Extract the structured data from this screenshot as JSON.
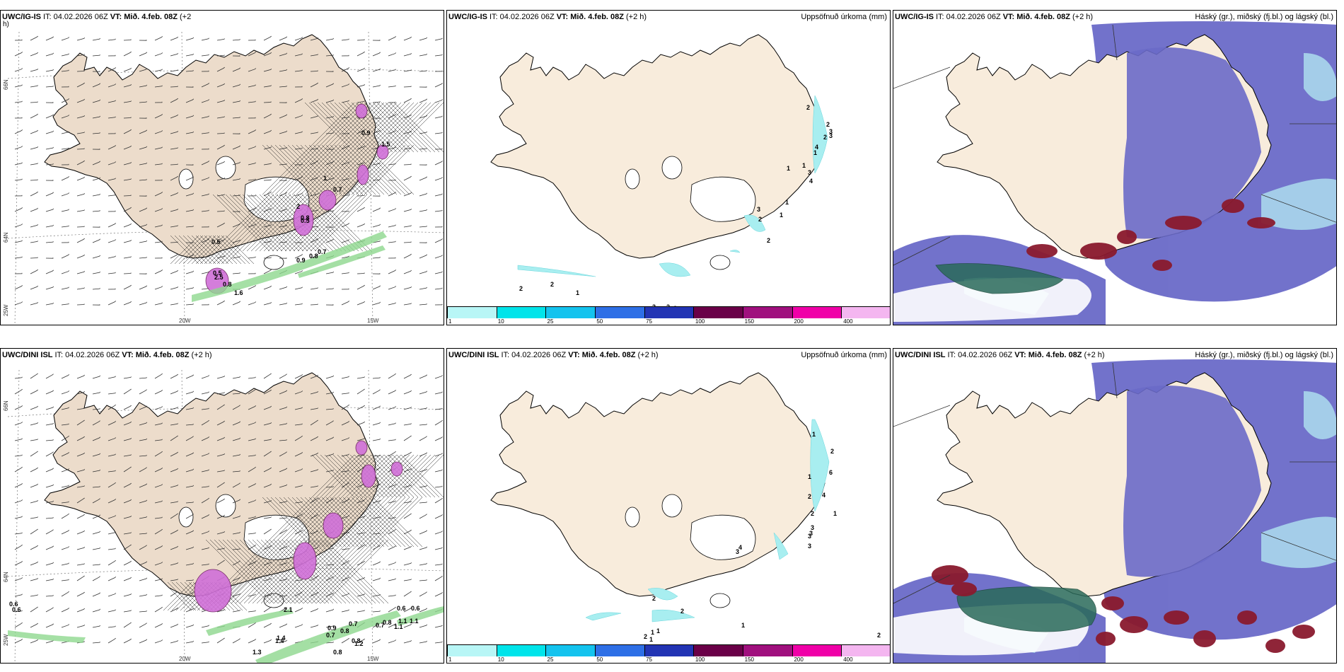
{
  "panels": [
    {
      "id": "p1",
      "type": "wind",
      "header": {
        "src": "UWC/IG-IS",
        "it_label": "IT:",
        "it": "04.02.2026 06Z",
        "vt_label": "VT:",
        "vt": "Mið. 4.feb. 08Z",
        "lead": "(+2",
        "right": ""
      },
      "extra_line": "h)",
      "coords": {
        "lat_top": "66N",
        "lat_mid": "64N",
        "lat_bot": "25W",
        "lon1": "20W",
        "lon2": "15W"
      },
      "labels": [
        "0.5",
        "1",
        "0.8",
        "2",
        "0.9",
        "1.5",
        "0.5",
        "0.7",
        "2.5",
        "0.9",
        "0.8",
        "0.7",
        "1.6",
        "0.8",
        "0.5"
      ]
    },
    {
      "id": "p2",
      "type": "precip",
      "header": {
        "src": "UWC/IG-IS",
        "it_label": "IT:",
        "it": "04.02.2026 06Z",
        "vt_label": "VT:",
        "vt": "Mið. 4.feb. 08Z",
        "lead": "(+2 h)",
        "right": "Uppsöfnuð úrkoma (mm)"
      },
      "labels": [
        "2",
        "2",
        "3",
        "2",
        "3",
        "4",
        "1",
        "1",
        "1",
        "3",
        "4",
        "1",
        "3",
        "2",
        "1",
        "2",
        "2",
        "2",
        "1",
        "2",
        "3",
        "2"
      ]
    },
    {
      "id": "p3",
      "type": "clouds",
      "header": {
        "src": "UWC/IG-IS",
        "it_label": "IT:",
        "it": "04.02.2026 06Z",
        "vt_label": "VT:",
        "vt": "Mið. 4.feb. 08Z",
        "lead": "(+2 h)",
        "right": "Háský (gr.), miðský (fj.bl.) og lágský (bl.)"
      }
    },
    {
      "id": "p4",
      "type": "wind",
      "header": {
        "src": "UWC/DINI ISL",
        "it_label": "IT:",
        "it": "04.02.2026 06Z",
        "vt_label": "VT:",
        "vt": "Mið. 4.feb. 08Z",
        "lead": "(+2 h)",
        "right": ""
      },
      "extra_line": "",
      "coords": {
        "lat_top": "66N",
        "lat_mid": "64N",
        "lat_bot": "25W",
        "lon1": "20W",
        "lon2": "15W"
      },
      "labels": [
        "0.6",
        "0.6",
        "2.1",
        "0.9",
        "0.7",
        "0.6",
        "0.6",
        "1.1",
        "0.8",
        "0.7",
        "1.4",
        "1.1",
        "0.8",
        "0.7",
        "1.2",
        "1.3",
        "0.8",
        "1.4",
        "0.8",
        "1.1"
      ]
    },
    {
      "id": "p5",
      "type": "precip",
      "header": {
        "src": "UWC/DINI ISL",
        "it_label": "IT:",
        "it": "04.02.2026 06Z",
        "vt_label": "VT:",
        "vt": "Mið. 4.feb. 08Z",
        "lead": "(+2 h)",
        "right": "Uppsöfnuð úrkoma (mm)"
      },
      "labels": [
        "1",
        "2",
        "6",
        "1",
        "2",
        "4",
        "2",
        "1",
        "3",
        "3",
        "3",
        "3",
        "4",
        "3",
        "2",
        "2",
        "2",
        "1",
        "1",
        "1",
        "1",
        "2"
      ]
    },
    {
      "id": "p6",
      "type": "clouds",
      "header": {
        "src": "UWC/DINI ISL",
        "it_label": "IT:",
        "it": "04.02.2026 06Z",
        "vt_label": "VT:",
        "vt": "Mið. 4.feb. 08Z",
        "lead": "(+2 h)",
        "right": "Háský (gr.), miðský (fj.bl.) og lágský (bl.)"
      }
    }
  ],
  "colorbar": {
    "colors": [
      "#b8f6f6",
      "#00e4ea",
      "#14c3ee",
      "#2e6fe6",
      "#2234b4",
      "#6a0048",
      "#a0107e",
      "#f000a8",
      "#f4b6f0"
    ],
    "labels": [
      "1",
      "10",
      "25",
      "50",
      "75",
      "100",
      "150",
      "200",
      "400"
    ]
  },
  "colors": {
    "land": "#f8ecdc",
    "land_wind": "#ecdccb",
    "high_cloud": "#6a6ac8",
    "mid_cloud": "#2a6a5a",
    "low_cloud": "#b0e4f0",
    "dark_red": "#8a1a2e",
    "precip_cyan": "#a8eef0",
    "pink_precip": "#d070d8",
    "green_precip": "#8ed88e"
  }
}
